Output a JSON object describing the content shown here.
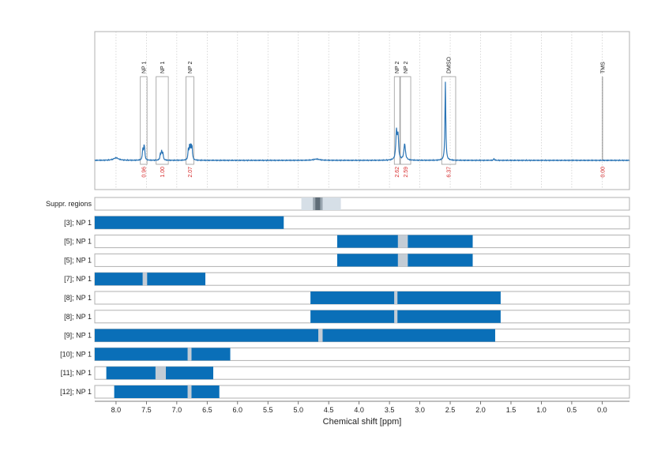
{
  "chart_data": {
    "type": "nmr_spectrum_with_intervals",
    "xlabel": "Chemical shift [ppm]",
    "xlim": [
      8.35,
      -0.45
    ],
    "xticks": [
      8.0,
      7.5,
      7.0,
      6.5,
      6.0,
      5.5,
      5.0,
      4.5,
      4.0,
      3.5,
      3.0,
      2.5,
      2.0,
      1.5,
      1.0,
      0.5,
      0.0
    ],
    "xtick_labels": [
      "8.0",
      "7.5",
      "7.0",
      "6.5",
      "6.0",
      "5.5",
      "5.0",
      "4.5",
      "4.0",
      "3.5",
      "3.0",
      "2.5",
      "2.0",
      "1.5",
      "1.0",
      "0.5",
      "0.0"
    ],
    "spectrum_color": "#2a74b5",
    "spectrum_peaks": [
      {
        "ppm": 8.0,
        "height": 0.02,
        "width": 0.05
      },
      {
        "ppm": 7.56,
        "height": 0.085,
        "width": 0.008
      },
      {
        "ppm": 7.54,
        "height": 0.09,
        "width": 0.008
      },
      {
        "ppm": 7.53,
        "height": 0.06,
        "width": 0.008
      },
      {
        "ppm": 7.27,
        "height": 0.05,
        "width": 0.008
      },
      {
        "ppm": 7.25,
        "height": 0.07,
        "width": 0.008
      },
      {
        "ppm": 7.23,
        "height": 0.06,
        "width": 0.008
      },
      {
        "ppm": 6.81,
        "height": 0.08,
        "width": 0.008
      },
      {
        "ppm": 6.79,
        "height": 0.1,
        "width": 0.008
      },
      {
        "ppm": 6.77,
        "height": 0.11,
        "width": 0.008
      },
      {
        "ppm": 6.75,
        "height": 0.11,
        "width": 0.008
      },
      {
        "ppm": 3.385,
        "height": 0.22,
        "width": 0.012
      },
      {
        "ppm": 3.36,
        "height": 0.19,
        "width": 0.012
      },
      {
        "ppm": 3.25,
        "height": 0.13,
        "width": 0.015
      },
      {
        "ppm": 2.58,
        "height": 0.62,
        "width": 0.008
      },
      {
        "ppm": 1.78,
        "height": 0.012,
        "width": 0.01
      },
      {
        "ppm": 4.7,
        "height": 0.01,
        "width": 0.06
      }
    ],
    "peak_groups": [
      {
        "label": "NP 1",
        "from": 7.6,
        "to": 7.49,
        "box_height": 0.8,
        "integral": "0.96"
      },
      {
        "label": "NP 1",
        "from": 7.34,
        "to": 7.14,
        "box_height": 0.8,
        "integral": "1.00"
      },
      {
        "label": "NP 2",
        "from": 6.85,
        "to": 6.72,
        "box_height": 0.8,
        "integral": "2.07"
      },
      {
        "label": "NP 2",
        "from": 3.42,
        "to": 3.33,
        "box_height": 0.8,
        "integral": "2.62"
      },
      {
        "label": "NP 2",
        "from": 3.32,
        "to": 3.15,
        "box_height": 0.8,
        "integral": "2.59"
      },
      {
        "label": "DMSO",
        "from": 2.64,
        "to": 2.41,
        "box_height": 0.8,
        "integral": "6.37"
      },
      {
        "label": "TMS",
        "from": 0.0,
        "to": 0.0,
        "box_height": 0.8,
        "integral": "0.00"
      }
    ],
    "suppressed_regions": {
      "label": "Suppr. regions",
      "outer": [
        4.95,
        4.3
      ],
      "middle": [
        4.76,
        4.6
      ],
      "inner": [
        4.72,
        4.64
      ]
    },
    "interval_rows": [
      {
        "label": "[3]; NP 1",
        "segments": [
          [
            8.35,
            5.24
          ]
        ],
        "gaps": []
      },
      {
        "label": "[5]; NP 1",
        "segments": [
          [
            4.36,
            3.36
          ],
          [
            3.2,
            2.13
          ]
        ],
        "gaps": [
          [
            3.36,
            3.2
          ]
        ]
      },
      {
        "label": "[5]; NP 1",
        "segments": [
          [
            4.36,
            3.36
          ],
          [
            3.2,
            2.13
          ]
        ],
        "gaps": [
          [
            3.36,
            3.2
          ]
        ]
      },
      {
        "label": "[7]; NP 1",
        "segments": [
          [
            8.35,
            7.56
          ],
          [
            7.49,
            6.53
          ]
        ],
        "gaps": [
          [
            7.56,
            7.49
          ]
        ]
      },
      {
        "label": "[8]; NP 1",
        "segments": [
          [
            4.8,
            3.42
          ],
          [
            3.37,
            1.67
          ]
        ],
        "gaps": [
          [
            3.42,
            3.37
          ]
        ]
      },
      {
        "label": "[8]; NP 1",
        "segments": [
          [
            4.8,
            3.42
          ],
          [
            3.37,
            1.67
          ]
        ],
        "gaps": [
          [
            3.42,
            3.37
          ]
        ]
      },
      {
        "label": "[9]; NP 1",
        "segments": [
          [
            8.35,
            4.67
          ],
          [
            4.6,
            1.76
          ]
        ],
        "gaps": [
          [
            4.67,
            4.6
          ]
        ]
      },
      {
        "label": "[10]; NP 1",
        "segments": [
          [
            8.35,
            6.82
          ],
          [
            6.76,
            6.12
          ]
        ],
        "gaps": [
          [
            6.82,
            6.76
          ]
        ]
      },
      {
        "label": "[11]; NP 1",
        "segments": [
          [
            8.16,
            7.35
          ],
          [
            7.18,
            6.4
          ]
        ],
        "gaps": [
          [
            7.35,
            7.18
          ]
        ]
      },
      {
        "label": "[12]; NP 1",
        "segments": [
          [
            8.03,
            6.82
          ],
          [
            6.76,
            6.3
          ]
        ],
        "gaps": [
          [
            6.82,
            6.76
          ]
        ]
      }
    ],
    "colors": {
      "bar": "#0a6fb8",
      "gap": "#c3ccd5",
      "supp_outer": "#d6dfe7",
      "supp_middle": "#9aa6b0",
      "supp_inner": "#5f6d78",
      "integral_text": "#d62728",
      "frame": "#b0b0b0",
      "grid": "#c9c9c9"
    }
  }
}
